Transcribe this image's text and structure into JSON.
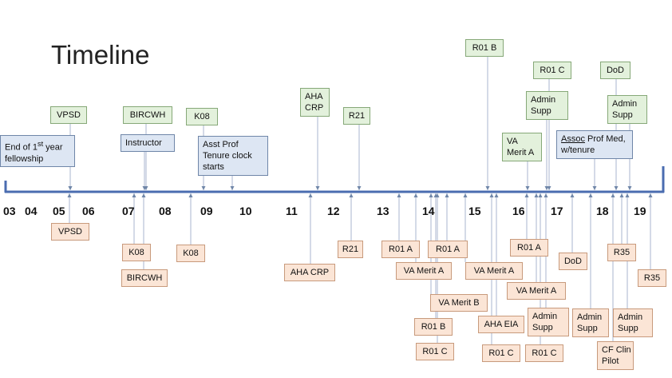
{
  "title": "Timeline",
  "years": [
    "03",
    "04",
    "05",
    "06",
    "07",
    "08",
    "09",
    "10",
    "11",
    "12",
    "13",
    "14",
    "15",
    "16",
    "17",
    "18",
    "19"
  ],
  "colors": {
    "axis": "#4a6cb0",
    "connector": "#a9b6cf",
    "green_fill": "#e3f1dc",
    "blue_fill": "#dde6f3",
    "peach_fill": "#fbe5d6"
  },
  "above": {
    "fellowship_line1_pre": "End of 1",
    "fellowship_sup": "st",
    "fellowship_line1_post": " year",
    "fellowship_line2": "fellowship",
    "vpsd": "VPSD",
    "bircwh": "BIRCWH",
    "instructor": "Instructor",
    "k08": "K08",
    "asst_prof_line1": "Asst Prof",
    "asst_prof_line2": "Tenure clock",
    "asst_prof_line3": "starts",
    "aha_crp_line1": "AHA",
    "aha_crp_line2": "CRP",
    "r21": "R21",
    "r01b": "R01 B",
    "va_merit_a_line1": "VA",
    "va_merit_a_line2": "Merit A",
    "r01c": "R01 C",
    "admin_supp_1_line1": "Admin",
    "admin_supp_1_line2": "Supp",
    "assoc_prof_line1_pre": "Assoc",
    "assoc_prof_line1_post": " Prof Med,",
    "assoc_prof_line2": "w/tenure",
    "dod": "DoD",
    "admin_supp_2_line1": "Admin",
    "admin_supp_2_line2": "Supp"
  },
  "below": {
    "vpsd": "VPSD",
    "k08_a": "K08",
    "bircwh": "BIRCWH",
    "k08_b": "K08",
    "aha_crp": "AHA CRP",
    "r21": "R21",
    "r01a_1": "R01 A",
    "va_merit_a_1": "VA Merit A",
    "r01a_2": "R01 A",
    "va_merit_b": "VA Merit B",
    "r01b": "R01 B",
    "r01c_1": "R01 C",
    "va_merit_a_2": "VA Merit A",
    "aha_eia": "AHA EIA",
    "r01c_2": "R01 C",
    "r01a_3": "R01 A",
    "va_merit_a_3": "VA Merit A",
    "admin_supp_1_line1": "Admin",
    "admin_supp_1_line2": "Supp",
    "r01c_3": "R01 C",
    "dod": "DoD",
    "admin_supp_2_line1": "Admin",
    "admin_supp_2_line2": "Supp",
    "r35_1": "R35",
    "cf_clin_line1": "CF Clin",
    "cf_clin_line2": "Pilot",
    "admin_supp_3_line1": "Admin",
    "admin_supp_3_line2": "Supp",
    "r35_2": "R35"
  }
}
